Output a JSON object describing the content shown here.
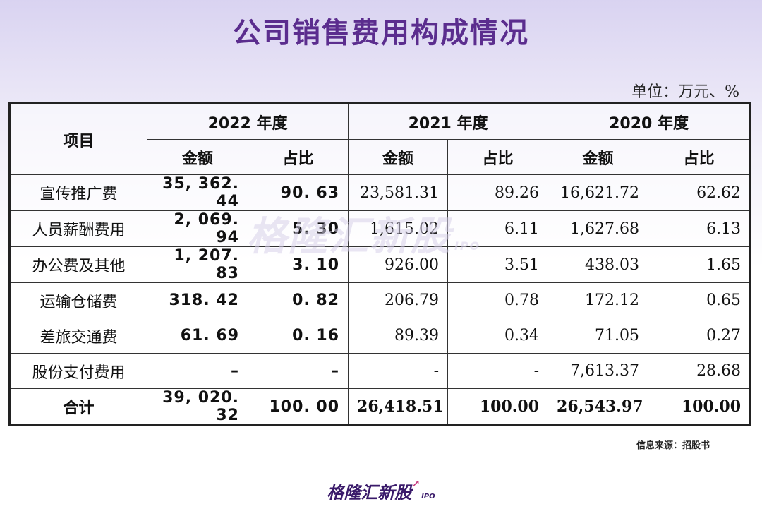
{
  "title": "公司销售费用构成情况",
  "unit": "单位：万元、%",
  "table": {
    "header_item": "项目",
    "years": [
      "2022 年度",
      "2021 年度",
      "2020 年度"
    ],
    "sub_amount": "金额",
    "sub_ratio": "占比",
    "rows": [
      {
        "label": "宣传推广费",
        "v": [
          "35, 362. 44",
          "90. 63",
          "23,581.31",
          "89.26",
          "16,621.72",
          "62.62"
        ]
      },
      {
        "label": "人员薪酬费用",
        "v": [
          "2, 069. 94",
          "5. 30",
          "1,615.02",
          "6.11",
          "1,627.68",
          "6.13"
        ]
      },
      {
        "label": "办公费及其他",
        "v": [
          "1, 207. 83",
          "3. 10",
          "926.00",
          "3.51",
          "438.03",
          "1.65"
        ]
      },
      {
        "label": "运输仓储费",
        "v": [
          "318. 42",
          "0. 82",
          "206.79",
          "0.78",
          "172.12",
          "0.65"
        ]
      },
      {
        "label": "差旅交通费",
        "v": [
          "61. 69",
          "0. 16",
          "89.39",
          "0.34",
          "71.05",
          "0.27"
        ]
      },
      {
        "label": "股份支付费用",
        "v": [
          "–",
          "–",
          "-",
          "-",
          "7,613.37",
          "28.68"
        ]
      },
      {
        "label": "合计",
        "v": [
          "39, 020. 32",
          "100. 00",
          "26,418.51",
          "100.00",
          "26,543.97",
          "100.00"
        ]
      }
    ]
  },
  "watermark": {
    "text": "格隆汇新股",
    "sub": "IPO"
  },
  "source": "信息来源：招股书",
  "logo": {
    "text": "格隆汇新股",
    "sub": "IPO",
    "arrow": "↗"
  }
}
